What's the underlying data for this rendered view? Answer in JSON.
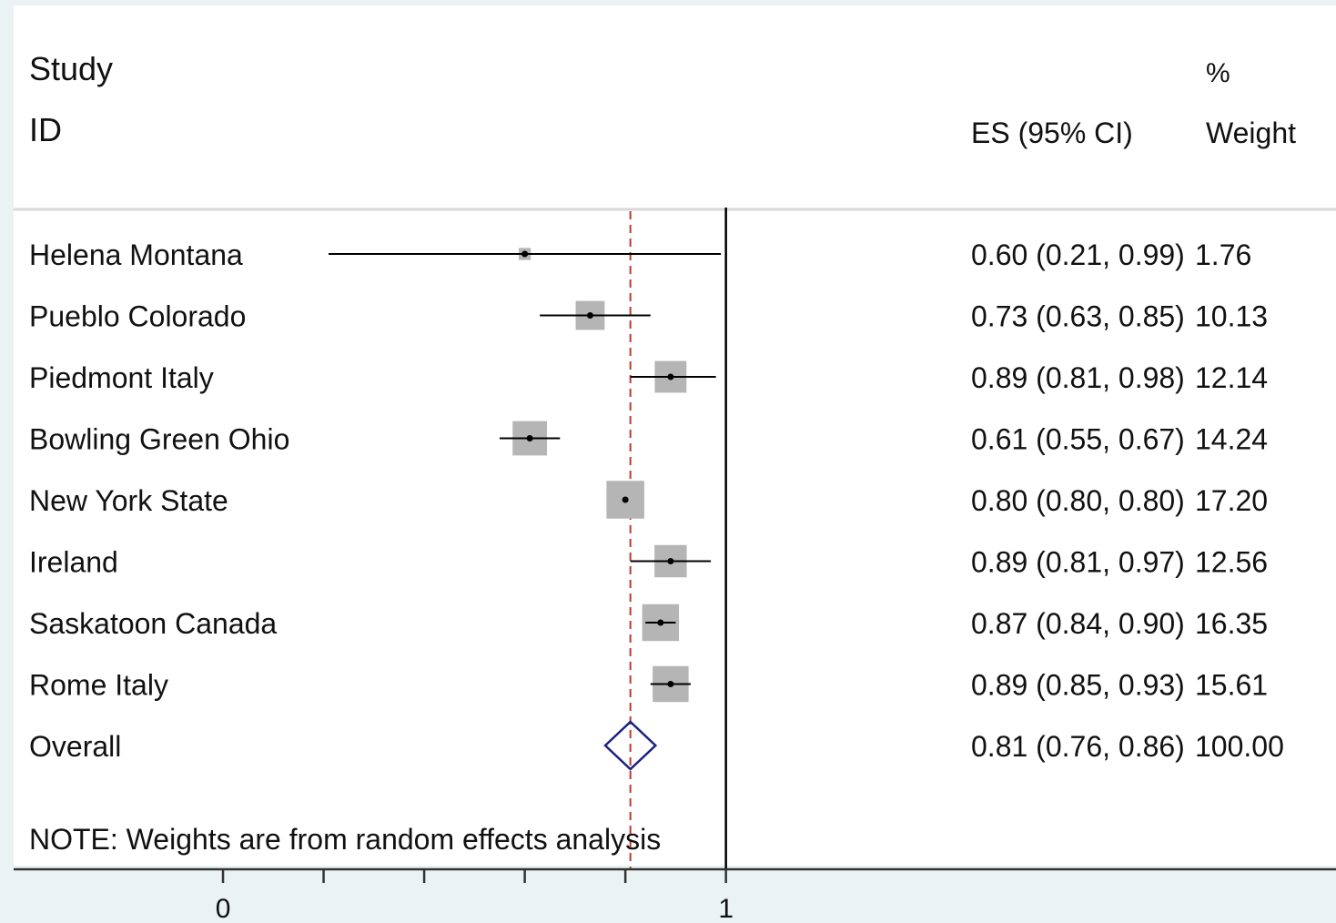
{
  "header": {
    "study_label": "Study",
    "id_label": "ID",
    "es_label": "ES (95% CI)",
    "pct_label": "%",
    "weight_label": "Weight"
  },
  "note": "NOTE: Weights are from random effects analysis",
  "colors": {
    "background": "#eaf2f3",
    "plot_area": "#ffffff",
    "weight_box": "#b5b5b5",
    "line": "#000000",
    "reference_line": "#c0392b",
    "overall_diamond": "#1a237e"
  },
  "chart_data": {
    "type": "forest",
    "x_range": [
      -0.4434,
      1.4566
    ],
    "x_ticks": [
      0,
      0.2,
      0.4,
      0.6,
      0.8,
      1
    ],
    "x_tick_labels": [
      {
        "value": 0,
        "label": "0"
      },
      {
        "value": 1,
        "label": "1"
      }
    ],
    "null_line": 1,
    "overall_line": 0.81,
    "studies": [
      {
        "name": "Helena Montana",
        "es": 0.6,
        "lo": 0.21,
        "hi": 0.99,
        "weight": 1.76,
        "ci_text": "0.60 (0.21, 0.99)",
        "weight_text": "1.76"
      },
      {
        "name": "Pueblo Colorado",
        "es": 0.73,
        "lo": 0.63,
        "hi": 0.85,
        "weight": 10.13,
        "ci_text": "0.73 (0.63, 0.85)",
        "weight_text": "10.13"
      },
      {
        "name": "Piedmont Italy",
        "es": 0.89,
        "lo": 0.81,
        "hi": 0.98,
        "weight": 12.14,
        "ci_text": "0.89 (0.81, 0.98)",
        "weight_text": "12.14"
      },
      {
        "name": "Bowling Green Ohio",
        "es": 0.61,
        "lo": 0.55,
        "hi": 0.67,
        "weight": 14.24,
        "ci_text": "0.61 (0.55, 0.67)",
        "weight_text": "14.24"
      },
      {
        "name": "New York State",
        "es": 0.8,
        "lo": 0.8,
        "hi": 0.8,
        "weight": 17.2,
        "ci_text": "0.80 (0.80, 0.80)",
        "weight_text": "17.20"
      },
      {
        "name": "Ireland",
        "es": 0.89,
        "lo": 0.81,
        "hi": 0.97,
        "weight": 12.56,
        "ci_text": "0.89 (0.81, 0.97)",
        "weight_text": "12.56"
      },
      {
        "name": "Saskatoon Canada",
        "es": 0.87,
        "lo": 0.84,
        "hi": 0.9,
        "weight": 16.35,
        "ci_text": "0.87 (0.84, 0.90)",
        "weight_text": "16.35"
      },
      {
        "name": "Rome Italy",
        "es": 0.89,
        "lo": 0.85,
        "hi": 0.93,
        "weight": 15.61,
        "ci_text": "0.89 (0.85, 0.93)",
        "weight_text": "15.61"
      }
    ],
    "overall": {
      "name": "Overall",
      "es": 0.81,
      "lo": 0.76,
      "hi": 0.86,
      "weight": 100.0,
      "ci_text": "0.81 (0.76, 0.86)",
      "weight_text": "100.00"
    }
  }
}
